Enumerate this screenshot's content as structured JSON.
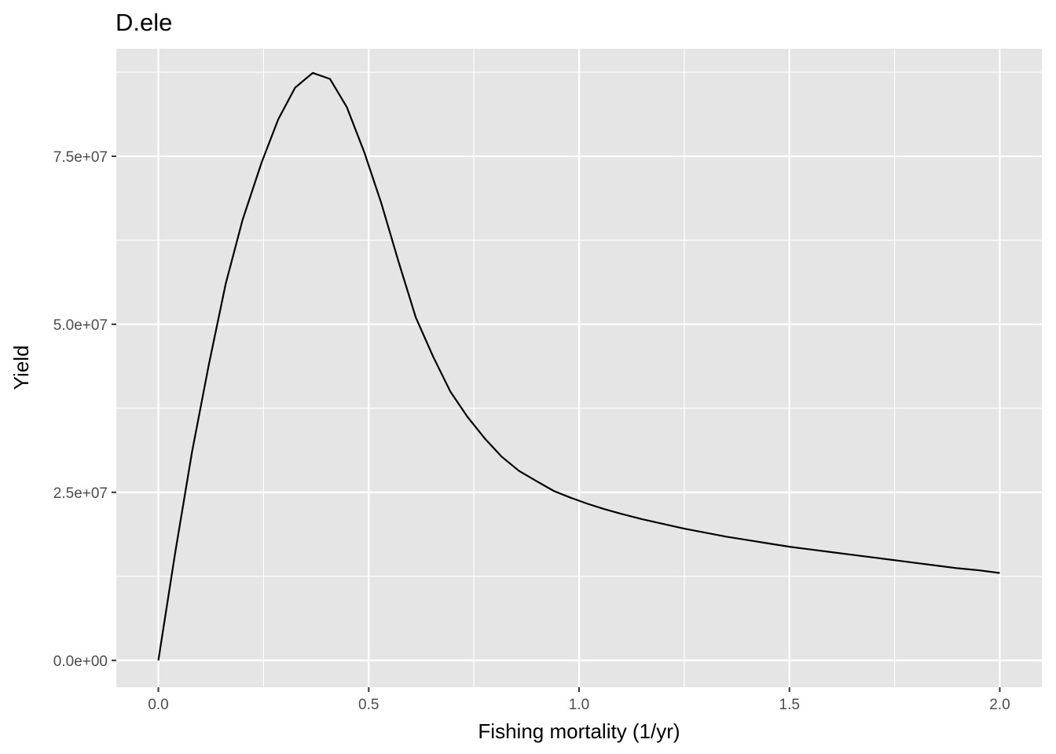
{
  "chart_data": {
    "type": "line",
    "title": "D.ele",
    "xlabel": "Fishing mortality (1/yr)",
    "ylabel": "Yield",
    "xlim": [
      -0.1,
      2.1
    ],
    "ylim": [
      -4000000,
      91000000
    ],
    "x_ticks": [
      0.0,
      0.5,
      1.0,
      1.5,
      2.0
    ],
    "x_tick_labels": [
      "0.0",
      "0.5",
      "1.0",
      "1.5",
      "2.0"
    ],
    "y_ticks": [
      0,
      25000000,
      50000000,
      75000000
    ],
    "y_tick_labels": [
      "0.0e+00",
      "2.5e+07",
      "5.0e+07",
      "7.5e+07"
    ],
    "x_minor": [
      0.25,
      0.75,
      1.25,
      1.75
    ],
    "y_minor": [
      12500000,
      37500000,
      62500000,
      87500000
    ],
    "grid": true,
    "panel_color": "#e5e5e5",
    "grid_color": "#ffffff",
    "line_color": "#000000",
    "series": [
      {
        "x": [
          0.0,
          0.04,
          0.08,
          0.12,
          0.16,
          0.2,
          0.245,
          0.285,
          0.325,
          0.367,
          0.408,
          0.448,
          0.49,
          0.53,
          0.57,
          0.612,
          0.653,
          0.694,
          0.735,
          0.776,
          0.816,
          0.857,
          0.898,
          0.94,
          0.98,
          1.02,
          1.06,
          1.1,
          1.15,
          1.2,
          1.25,
          1.3,
          1.35,
          1.4,
          1.45,
          1.5,
          1.55,
          1.6,
          1.65,
          1.7,
          1.75,
          1.8,
          1.85,
          1.9,
          1.95,
          2.0
        ],
        "y": [
          0,
          16000000,
          31000000,
          44000000,
          56000000,
          65500000,
          74000000,
          80500000,
          85200000,
          87400000,
          86500000,
          82300000,
          75500000,
          68000000,
          59500000,
          51000000,
          45200000,
          40000000,
          36200000,
          33000000,
          30300000,
          28200000,
          26700000,
          25200000,
          24200000,
          23300000,
          22500000,
          21800000,
          21000000,
          20300000,
          19600000,
          19000000,
          18400000,
          17900000,
          17400000,
          16900000,
          16500000,
          16100000,
          15700000,
          15300000,
          14900000,
          14500000,
          14100000,
          13700000,
          13400000,
          13000000
        ]
      }
    ]
  }
}
